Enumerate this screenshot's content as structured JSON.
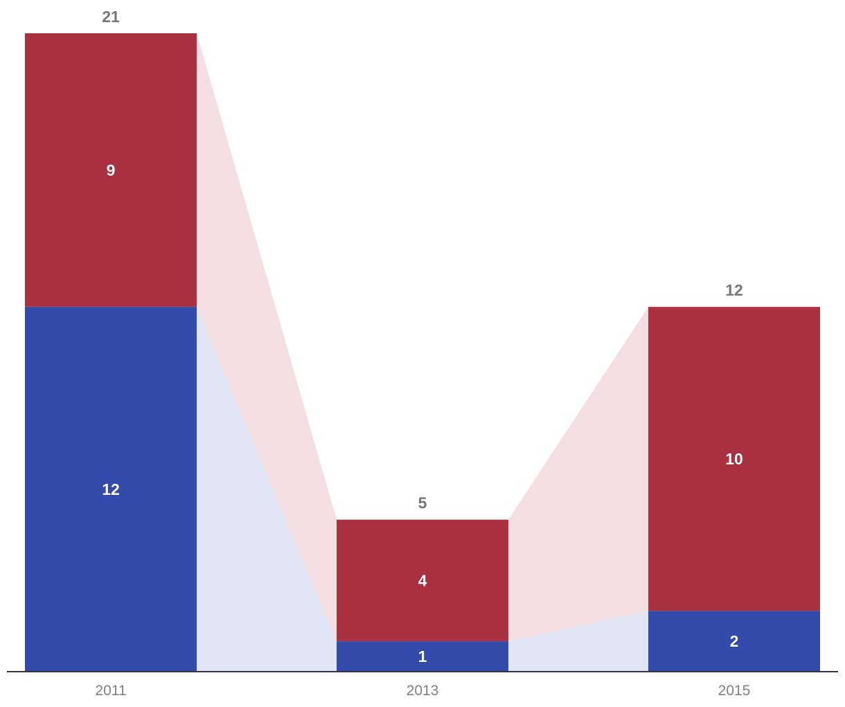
{
  "chart_data": {
    "type": "bar",
    "stacked": true,
    "categories": [
      "2011",
      "2013",
      "2015"
    ],
    "series": [
      {
        "values": [
          12,
          1,
          2
        ],
        "color": "#334baa",
        "flow_color": "#e1e4f2"
      },
      {
        "values": [
          9,
          4,
          10
        ],
        "color": "#aa3240",
        "flow_color": "#f3dfe1"
      }
    ],
    "totals": [
      21,
      5,
      12
    ],
    "ylim": [
      0,
      21
    ],
    "grid": false,
    "legend": "none",
    "axis_color": "#333344",
    "total_label_color": "#777777",
    "tick_label_color": "#808080"
  }
}
